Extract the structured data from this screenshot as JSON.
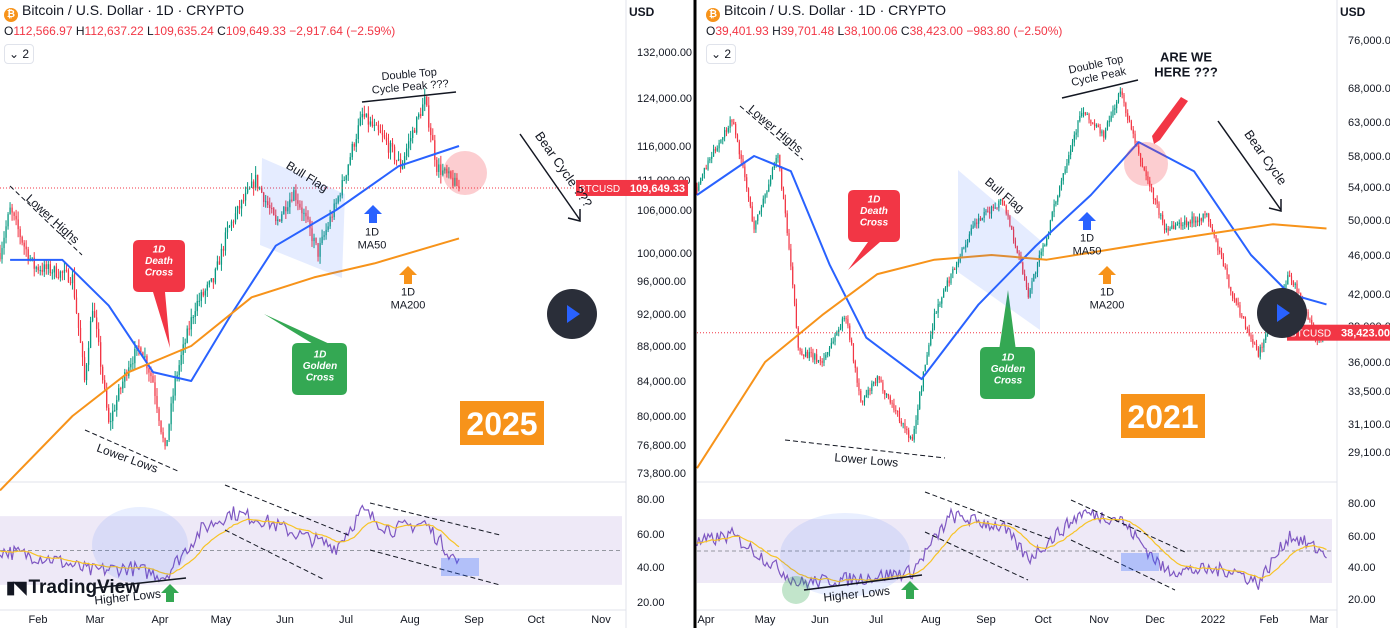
{
  "app": {
    "logo_text": "TradingView",
    "currency_label": "USD",
    "indicator_count": "2"
  },
  "panels": [
    {
      "title": "Bitcoin / U.S. Dollar · 1D · CRYPTO",
      "ohlc": {
        "O": "112,566.97",
        "H": "112,637.22",
        "L": "109,635.24",
        "C": "109,649.33",
        "change": "−2,917.64 (−2.59%)"
      },
      "price_tag": {
        "symbol": "BTCUSD",
        "value": "109,649.33"
      },
      "year_badge": "2025",
      "annotations": {
        "lower_highs": "Lower Highs",
        "lower_lows": "Lower Lows",
        "death_cross": "1D\nDeath\nCross",
        "golden_cross": "1D\nGolden\nCross",
        "bull_flag": "Bull Flag",
        "double_top": "Double Top\nCycle Peak ???",
        "ma50": "1D\nMA50",
        "ma200": "1D\nMA200",
        "bear_cycle": "Bear Cycle ???",
        "higher_lows": "Higher Lows"
      }
    },
    {
      "title": "Bitcoin / U.S. Dollar · 1D · CRYPTO",
      "ohlc": {
        "O": "39,401.93",
        "H": "39,701.48",
        "L": "38,100.06",
        "C": "38,423.00",
        "change": "−983.80 (−2.50%)"
      },
      "price_tag": {
        "symbol": "BTCUSD",
        "value": "38,423.00"
      },
      "year_badge": "2021",
      "annotations": {
        "lower_highs": "Lower Highs",
        "lower_lows": "Lower Lows",
        "death_cross": "1D\nDeath\nCross",
        "golden_cross": "1D\nGolden\nCross",
        "bull_flag": "Bull Flag",
        "double_top": "Double Top\nCycle Peak",
        "ma50": "1D\nMA50",
        "ma200": "1D\nMA200",
        "bear_cycle": "Bear Cycle",
        "are_we_here": "ARE WE\nHERE ???",
        "higher_lows": "Higher Lows"
      }
    }
  ],
  "chart_data": [
    {
      "type": "candlestick",
      "title": "Bitcoin / U.S. Dollar · 1D · CRYPTO",
      "x_ticks": [
        "Feb",
        "Mar",
        "Apr",
        "May",
        "Jun",
        "Jul",
        "Aug",
        "Sep",
        "Oct",
        "Nov"
      ],
      "y_ticks": [
        "132,000.00",
        "124,000.00",
        "116,000.00",
        "111,000.00",
        "106,000.00",
        "100,000.00",
        "96,000.00",
        "92,000.00",
        "88,000.00",
        "84,000.00",
        "80,000.00",
        "76,800.00",
        "73,800.00"
      ],
      "y_scale": "log",
      "close_anchors": [
        {
          "date": "2025-01-15",
          "value": 100000
        },
        {
          "date": "2025-01-20",
          "value": 106000
        },
        {
          "date": "2025-01-27",
          "value": 101000
        },
        {
          "date": "2025-02-01",
          "value": 98000
        },
        {
          "date": "2025-02-10",
          "value": 97500
        },
        {
          "date": "2025-02-20",
          "value": 96500
        },
        {
          "date": "2025-02-26",
          "value": 84000
        },
        {
          "date": "2025-03-02",
          "value": 93000
        },
        {
          "date": "2025-03-10",
          "value": 79000
        },
        {
          "date": "2025-03-20",
          "value": 86000
        },
        {
          "date": "2025-03-26",
          "value": 88000
        },
        {
          "date": "2025-04-01",
          "value": 84000
        },
        {
          "date": "2025-04-07",
          "value": 76000
        },
        {
          "date": "2025-04-12",
          "value": 84000
        },
        {
          "date": "2025-04-22",
          "value": 93000
        },
        {
          "date": "2025-05-01",
          "value": 96000
        },
        {
          "date": "2025-05-08",
          "value": 103000
        },
        {
          "date": "2025-05-22",
          "value": 111000
        },
        {
          "date": "2025-06-01",
          "value": 104000
        },
        {
          "date": "2025-06-10",
          "value": 109000
        },
        {
          "date": "2025-06-22",
          "value": 100000
        },
        {
          "date": "2025-07-01",
          "value": 107000
        },
        {
          "date": "2025-07-14",
          "value": 121000
        },
        {
          "date": "2025-07-25",
          "value": 117000
        },
        {
          "date": "2025-08-02",
          "value": 113000
        },
        {
          "date": "2025-08-14",
          "value": 123500
        },
        {
          "date": "2025-08-20",
          "value": 113000
        },
        {
          "date": "2025-08-27",
          "value": 111000
        },
        {
          "date": "2025-08-31",
          "value": 109649
        }
      ],
      "series": [
        {
          "name": "1D MA50",
          "color": "#2962ff",
          "points": [
            {
              "date": "2025-01-20",
              "value": 99000
            },
            {
              "date": "2025-02-15",
              "value": 99000
            },
            {
              "date": "2025-03-10",
              "value": 93000
            },
            {
              "date": "2025-04-01",
              "value": 85000
            },
            {
              "date": "2025-04-20",
              "value": 84000
            },
            {
              "date": "2025-05-10",
              "value": 92000
            },
            {
              "date": "2025-06-01",
              "value": 101000
            },
            {
              "date": "2025-07-01",
              "value": 106000
            },
            {
              "date": "2025-08-01",
              "value": 113000
            },
            {
              "date": "2025-08-31",
              "value": 116000
            }
          ]
        },
        {
          "name": "1D MA200",
          "color": "#f7931a",
          "points": [
            {
              "date": "2025-01-15",
              "value": 72000
            },
            {
              "date": "2025-02-20",
              "value": 80000
            },
            {
              "date": "2025-03-20",
              "value": 85000
            },
            {
              "date": "2025-04-20",
              "value": 88000
            },
            {
              "date": "2025-05-20",
              "value": 94000
            },
            {
              "date": "2025-06-20",
              "value": 96500
            },
            {
              "date": "2025-07-20",
              "value": 98500
            },
            {
              "date": "2025-08-31",
              "value": 102000
            }
          ]
        }
      ],
      "rsi": {
        "y_ticks": [
          "80.00",
          "60.00",
          "40.00",
          "20.00"
        ],
        "band": [
          30,
          70
        ],
        "anchors": [
          {
            "date": "2025-01-15",
            "value": 50
          },
          {
            "date": "2025-02-10",
            "value": 45
          },
          {
            "date": "2025-03-01",
            "value": 38
          },
          {
            "date": "2025-03-20",
            "value": 40
          },
          {
            "date": "2025-04-07",
            "value": 35
          },
          {
            "date": "2025-04-25",
            "value": 62
          },
          {
            "date": "2025-05-10",
            "value": 72
          },
          {
            "date": "2025-05-25",
            "value": 68
          },
          {
            "date": "2025-06-15",
            "value": 58
          },
          {
            "date": "2025-07-01",
            "value": 52
          },
          {
            "date": "2025-07-14",
            "value": 73
          },
          {
            "date": "2025-07-28",
            "value": 62
          },
          {
            "date": "2025-08-14",
            "value": 66
          },
          {
            "date": "2025-08-31",
            "value": 42
          }
        ]
      }
    },
    {
      "type": "candlestick",
      "title": "Bitcoin / U.S. Dollar · 1D · CRYPTO",
      "x_ticks": [
        "Apr",
        "May",
        "Jun",
        "Jul",
        "Aug",
        "Sep",
        "Oct",
        "Nov",
        "Dec",
        "2022",
        "Feb",
        "Mar"
      ],
      "y_ticks": [
        "76,000.00",
        "68,000.00",
        "63,000.00",
        "58,000.00",
        "54,000.00",
        "50,000.00",
        "46,000.00",
        "42,000.00",
        "39,000.00",
        "36,000.00",
        "33,500.00",
        "31,100.00",
        "29,100.00"
      ],
      "y_scale": "log",
      "close_anchors": [
        {
          "date": "2021-03-25",
          "value": 54000
        },
        {
          "date": "2021-04-13",
          "value": 63500
        },
        {
          "date": "2021-04-25",
          "value": 49000
        },
        {
          "date": "2021-05-08",
          "value": 58000
        },
        {
          "date": "2021-05-19",
          "value": 37000
        },
        {
          "date": "2021-06-01",
          "value": 36000
        },
        {
          "date": "2021-06-14",
          "value": 40000
        },
        {
          "date": "2021-06-22",
          "value": 32500
        },
        {
          "date": "2021-07-01",
          "value": 34500
        },
        {
          "date": "2021-07-20",
          "value": 29800
        },
        {
          "date": "2021-08-01",
          "value": 40000
        },
        {
          "date": "2021-08-23",
          "value": 49500
        },
        {
          "date": "2021-09-07",
          "value": 52500
        },
        {
          "date": "2021-09-21",
          "value": 42000
        },
        {
          "date": "2021-10-01",
          "value": 48000
        },
        {
          "date": "2021-10-20",
          "value": 64500
        },
        {
          "date": "2021-11-01",
          "value": 61000
        },
        {
          "date": "2021-11-10",
          "value": 67500
        },
        {
          "date": "2021-11-20",
          "value": 58000
        },
        {
          "date": "2021-12-04",
          "value": 49000
        },
        {
          "date": "2021-12-27",
          "value": 50500
        },
        {
          "date": "2022-01-10",
          "value": 41800
        },
        {
          "date": "2022-01-24",
          "value": 36500
        },
        {
          "date": "2022-02-10",
          "value": 44000
        },
        {
          "date": "2022-02-24",
          "value": 38000
        },
        {
          "date": "2022-03-02",
          "value": 38423
        }
      ],
      "series": [
        {
          "name": "1D MA50",
          "color": "#2962ff",
          "points": [
            {
              "date": "2021-03-25",
              "value": 53000
            },
            {
              "date": "2021-04-25",
              "value": 58000
            },
            {
              "date": "2021-05-15",
              "value": 56000
            },
            {
              "date": "2021-06-05",
              "value": 45000
            },
            {
              "date": "2021-06-25",
              "value": 38000
            },
            {
              "date": "2021-07-25",
              "value": 34500
            },
            {
              "date": "2021-08-25",
              "value": 41000
            },
            {
              "date": "2021-09-25",
              "value": 47000
            },
            {
              "date": "2021-10-25",
              "value": 53000
            },
            {
              "date": "2021-11-20",
              "value": 60000
            },
            {
              "date": "2021-12-20",
              "value": 56000
            },
            {
              "date": "2022-01-20",
              "value": 46000
            },
            {
              "date": "2022-02-10",
              "value": 42000
            },
            {
              "date": "2022-03-02",
              "value": 41000
            }
          ]
        },
        {
          "name": "1D MA200",
          "color": "#f7931a",
          "points": [
            {
              "date": "2021-03-25",
              "value": 28000
            },
            {
              "date": "2021-05-01",
              "value": 36000
            },
            {
              "date": "2021-06-01",
              "value": 40000
            },
            {
              "date": "2021-07-01",
              "value": 44000
            },
            {
              "date": "2021-08-01",
              "value": 45500
            },
            {
              "date": "2021-09-01",
              "value": 46000
            },
            {
              "date": "2021-10-01",
              "value": 45500
            },
            {
              "date": "2021-11-01",
              "value": 46500
            },
            {
              "date": "2021-12-01",
              "value": 47500
            },
            {
              "date": "2022-01-01",
              "value": 48500
            },
            {
              "date": "2022-02-01",
              "value": 49500
            },
            {
              "date": "2022-03-02",
              "value": 49000
            }
          ]
        }
      ],
      "rsi": {
        "y_ticks": [
          "80.00",
          "60.00",
          "40.00",
          "20.00"
        ],
        "band": [
          30,
          70
        ],
        "anchors": [
          {
            "date": "2021-03-25",
            "value": 55
          },
          {
            "date": "2021-04-13",
            "value": 60
          },
          {
            "date": "2021-05-19",
            "value": 30
          },
          {
            "date": "2021-06-22",
            "value": 33
          },
          {
            "date": "2021-07-20",
            "value": 37
          },
          {
            "date": "2021-08-10",
            "value": 72
          },
          {
            "date": "2021-09-07",
            "value": 65
          },
          {
            "date": "2021-09-21",
            "value": 45
          },
          {
            "date": "2021-10-20",
            "value": 74
          },
          {
            "date": "2021-11-10",
            "value": 70
          },
          {
            "date": "2021-12-04",
            "value": 38
          },
          {
            "date": "2022-01-10",
            "value": 38
          },
          {
            "date": "2022-01-24",
            "value": 30
          },
          {
            "date": "2022-02-10",
            "value": 60
          },
          {
            "date": "2022-03-02",
            "value": 48
          }
        ]
      }
    }
  ]
}
